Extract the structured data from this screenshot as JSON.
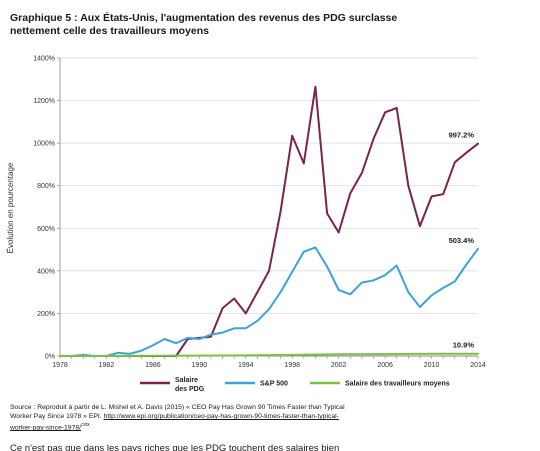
{
  "header": {
    "title_line1": "Graphique 5 : Aux États-Unis, l'augmentation des revenus des PDG surclasse",
    "title_line2": "nettement celle des travailleurs moyens"
  },
  "chart_data": {
    "type": "line",
    "title": "",
    "xlabel": "",
    "ylabel": "Évolution en pourcentage",
    "ylim": [
      0,
      1400
    ],
    "xlim": [
      1978,
      2014
    ],
    "y_ticks": [
      "0%",
      "200%",
      "400%",
      "600%",
      "800%",
      "1000%",
      "1200%",
      "1400%"
    ],
    "x_ticks": [
      "1978",
      "1982",
      "1986",
      "1990",
      "1994",
      "1998",
      "2002",
      "2006",
      "2010",
      "2014"
    ],
    "grid": "horizontal",
    "legend_position": "bottom",
    "series": [
      {
        "name": "Salaire des PDG",
        "legend_line1": "Salaire",
        "legend_line2": "des PDG",
        "color": "#7b2350",
        "end_label": "997.2%",
        "x": [
          1978,
          1979,
          1980,
          1981,
          1982,
          1983,
          1984,
          1985,
          1986,
          1987,
          1988,
          1989,
          1990,
          1991,
          1992,
          1993,
          1994,
          1995,
          1996,
          1997,
          1998,
          1999,
          2000,
          2001,
          2002,
          2003,
          2004,
          2005,
          2006,
          2007,
          2008,
          2009,
          2010,
          2011,
          2012,
          2013,
          2014
        ],
        "values": [
          0,
          0,
          0,
          0,
          0,
          0,
          0,
          0,
          0,
          0,
          0,
          80,
          85,
          90,
          225,
          270,
          200,
          300,
          400,
          680,
          1035,
          905,
          1265,
          670,
          580,
          765,
          860,
          1020,
          1145,
          1165,
          800,
          610,
          750,
          760,
          910,
          955,
          997.2
        ]
      },
      {
        "name": "S&P 500",
        "color": "#3aa3dc",
        "end_label": "503.4%",
        "x": [
          1978,
          1979,
          1980,
          1981,
          1982,
          1983,
          1984,
          1985,
          1986,
          1987,
          1988,
          1989,
          1990,
          1991,
          1992,
          1993,
          1994,
          1995,
          1996,
          1997,
          1998,
          1999,
          2000,
          2001,
          2002,
          2003,
          2004,
          2005,
          2006,
          2007,
          2008,
          2009,
          2010,
          2011,
          2012,
          2013,
          2014
        ],
        "values": [
          0,
          0,
          5,
          0,
          0,
          15,
          10,
          25,
          50,
          80,
          60,
          85,
          80,
          100,
          110,
          130,
          130,
          165,
          220,
          300,
          395,
          490,
          510,
          420,
          310,
          290,
          345,
          355,
          380,
          425,
          300,
          230,
          285,
          320,
          350,
          430,
          503.4
        ]
      },
      {
        "name": "Salaire des travailleurs moyens",
        "color": "#7cc142",
        "end_label": "10.9%",
        "x": [
          1978,
          1982,
          1986,
          1990,
          1994,
          1998,
          2002,
          2006,
          2010,
          2014
        ],
        "values": [
          0,
          0,
          1,
          2,
          3,
          5,
          8,
          9,
          11,
          10.9
        ]
      }
    ]
  },
  "source": {
    "prefix": "Source : Reproduit à partir de L. Mishel et A. Davis (2015) « CEO Pay Has Grown 90 Times Faster than Typical",
    "line2": "Worker Pay Since 1978 » EPI. ",
    "link_a": "http://www.epi.org/publication/ceo-pay-has-grown-90-times-faster-than-typical-",
    "link_b": "worker-pay-since-1978/",
    "note": "cxix"
  },
  "body_text": "Ce n'est pas que dans les pays riches que les PDG touchent des salaires bien"
}
